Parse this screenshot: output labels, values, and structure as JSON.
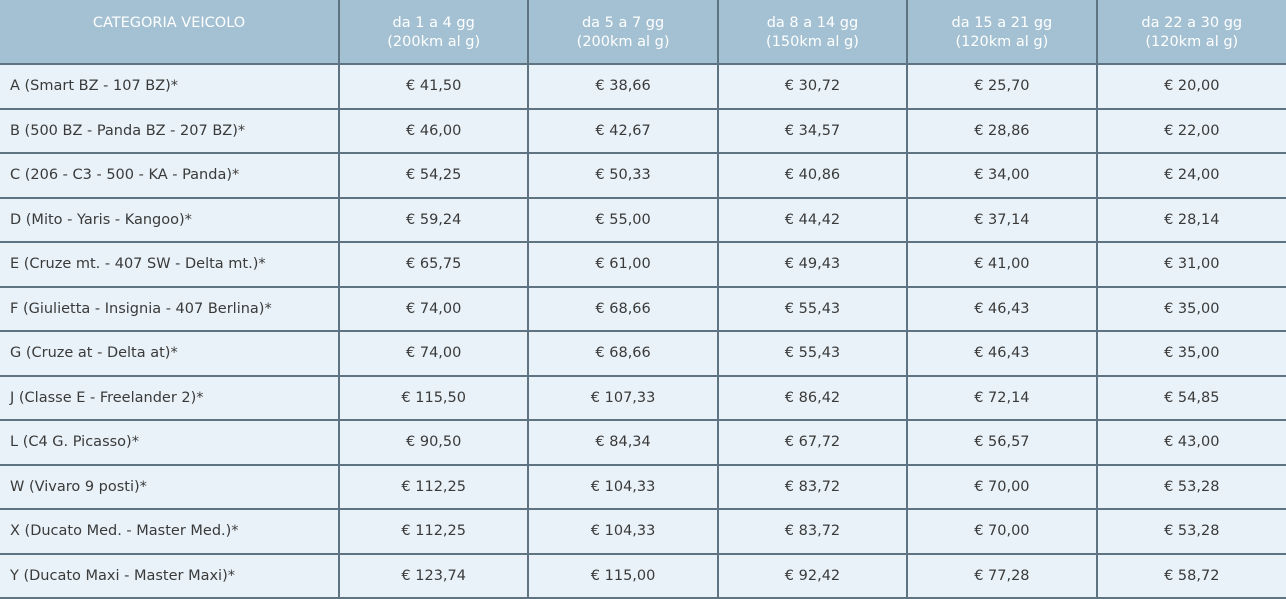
{
  "table": {
    "header": {
      "category": "CATEGORIA VEICOLO",
      "periods": [
        {
          "line1": "da 1 a 4 gg",
          "line2": "(200km al g)"
        },
        {
          "line1": "da 5 a 7 gg",
          "line2": "(200km al g)"
        },
        {
          "line1": "da 8 a 14 gg",
          "line2": "(150km al g)"
        },
        {
          "line1": "da 15 a 21 gg",
          "line2": "(120km al g)"
        },
        {
          "line1": "da 22 a 30 gg",
          "line2": "(120km al g)"
        }
      ]
    },
    "rows": [
      {
        "category": "A (Smart BZ - 107 BZ)*",
        "prices": [
          "€ 41,50",
          "€ 38,66",
          "€ 30,72",
          "€ 25,70",
          "€ 20,00"
        ]
      },
      {
        "category": "B (500 BZ - Panda BZ - 207 BZ)*",
        "prices": [
          "€ 46,00",
          "€ 42,67",
          "€ 34,57",
          "€ 28,86",
          "€ 22,00"
        ]
      },
      {
        "category": "C (206 - C3 - 500 - KA - Panda)*",
        "prices": [
          "€ 54,25",
          "€ 50,33",
          "€ 40,86",
          "€ 34,00",
          "€ 24,00"
        ]
      },
      {
        "category": "D (Mito - Yaris - Kangoo)*",
        "prices": [
          "€ 59,24",
          "€ 55,00",
          "€ 44,42",
          "€ 37,14",
          "€ 28,14"
        ]
      },
      {
        "category": "E (Cruze mt. - 407 SW - Delta mt.)*",
        "prices": [
          "€ 65,75",
          "€ 61,00",
          "€ 49,43",
          "€ 41,00",
          "€ 31,00"
        ]
      },
      {
        "category": "F (Giulietta - Insignia - 407 Berlina)*",
        "prices": [
          "€ 74,00",
          "€ 68,66",
          "€ 55,43",
          "€ 46,43",
          "€ 35,00"
        ]
      },
      {
        "category": "G (Cruze at - Delta at)*",
        "prices": [
          "€ 74,00",
          "€ 68,66",
          "€ 55,43",
          "€ 46,43",
          "€ 35,00"
        ]
      },
      {
        "category": "J (Classe E - Freelander 2)*",
        "prices": [
          "€ 115,50",
          "€ 107,33",
          "€ 86,42",
          "€ 72,14",
          "€ 54,85"
        ]
      },
      {
        "category": "L (C4 G. Picasso)*",
        "prices": [
          "€ 90,50",
          "€ 84,34",
          "€ 67,72",
          "€ 56,57",
          "€ 43,00"
        ]
      },
      {
        "category": "W (Vivaro 9 posti)*",
        "prices": [
          "€ 112,25",
          "€ 104,33",
          "€ 83,72",
          "€ 70,00",
          "€ 53,28"
        ]
      },
      {
        "category": "X (Ducato Med. - Master Med.)*",
        "prices": [
          "€ 112,25",
          "€ 104,33",
          "€ 83,72",
          "€ 70,00",
          "€ 53,28"
        ]
      },
      {
        "category": "Y (Ducato Maxi - Master Maxi)*",
        "prices": [
          "€ 123,74",
          "€ 115,00",
          "€ 92,42",
          "€ 77,28",
          "€ 58,72"
        ]
      }
    ]
  },
  "colors": {
    "header_bg": "#a3c1d2",
    "header_text": "#ffffff",
    "cell_bg": "#e9f2f8",
    "border": "#5f7482",
    "text": "#3a3a3a"
  }
}
